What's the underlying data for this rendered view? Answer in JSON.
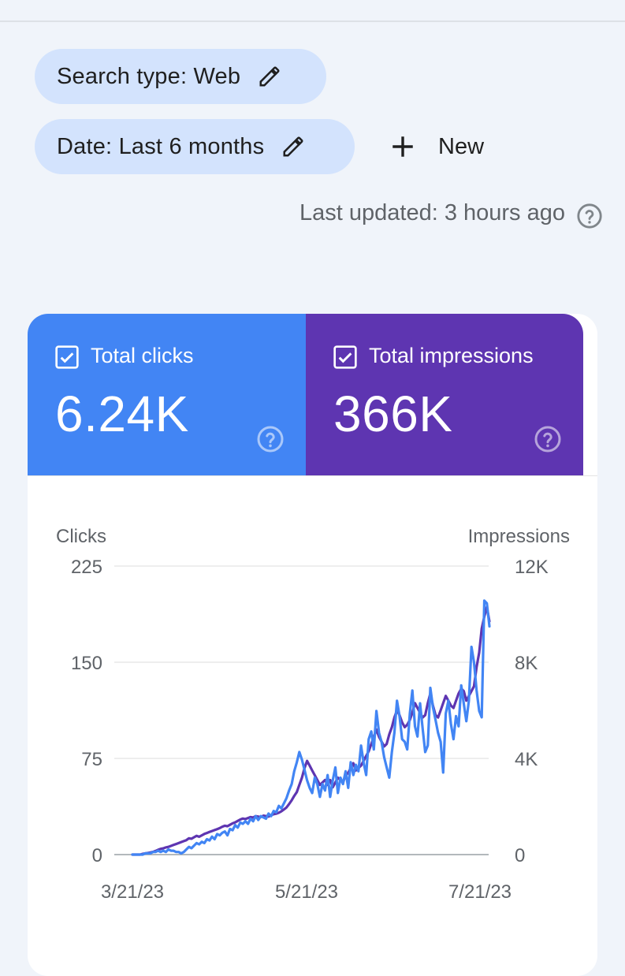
{
  "filters": {
    "search_type": "Search type: Web",
    "date": "Date: Last 6 months",
    "new_label": "New"
  },
  "status": {
    "last_updated": "Last updated: 3 hours ago"
  },
  "metrics": {
    "clicks": {
      "label": "Total clicks",
      "value": "6.24K",
      "color": "#4285f4",
      "checked": true
    },
    "impressions": {
      "label": "Total impressions",
      "value": "366K",
      "color": "#5e35b1",
      "checked": true
    }
  },
  "chart_data": {
    "type": "line",
    "y_left_label": "Clicks",
    "y_right_label": "Impressions",
    "y_left_ticks": [
      "225",
      "150",
      "75",
      "0"
    ],
    "y_right_ticks": [
      "12K",
      "8K",
      "4K",
      "0"
    ],
    "y_left_range": [
      0,
      225
    ],
    "y_right_range": [
      0,
      12000
    ],
    "x_tick_labels": [
      "3/21/23",
      "5/21/23",
      "7/21/23"
    ],
    "x_range": [
      "3/21/23",
      "7/30/23"
    ],
    "grid": true,
    "series": [
      {
        "name": "Clicks",
        "axis": "left",
        "color": "#4285f4",
        "values": [
          0,
          0,
          0,
          0,
          0,
          1,
          1,
          1,
          2,
          2,
          3,
          2,
          3,
          2,
          4,
          3,
          3,
          2,
          2,
          1,
          2,
          4,
          6,
          5,
          7,
          9,
          8,
          10,
          9,
          12,
          11,
          14,
          12,
          16,
          15,
          17,
          18,
          15,
          20,
          19,
          23,
          21,
          25,
          24,
          26,
          24,
          28,
          26,
          30,
          27,
          30,
          29,
          28,
          32,
          30,
          34,
          33,
          38,
          36,
          40,
          44,
          50,
          55,
          65,
          72,
          80,
          74,
          66,
          58,
          52,
          48,
          60,
          55,
          45,
          55,
          50,
          62,
          45,
          58,
          68,
          48,
          60,
          55,
          65,
          52,
          72,
          62,
          70,
          65,
          85,
          72,
          62,
          90,
          96,
          82,
          112,
          95,
          88,
          76,
          68,
          60,
          80,
          95,
          120,
          108,
          90,
          88,
          82,
          110,
          128,
          100,
          92,
          118,
          98,
          80,
          85,
          130,
          115,
          105,
          95,
          88,
          64,
          110,
          120,
          102,
          90,
          108,
          100,
          132,
          118,
          104,
          120,
          162,
          150,
          128,
          112,
          107,
          198,
          196,
          178
        ]
      },
      {
        "name": "Impressions",
        "axis": "right",
        "color": "#5e35b1",
        "values": [
          0,
          0,
          0,
          0,
          30,
          50,
          70,
          90,
          110,
          150,
          200,
          240,
          260,
          300,
          320,
          360,
          400,
          440,
          480,
          520,
          560,
          600,
          680,
          660,
          720,
          780,
          740,
          800,
          860,
          900,
          940,
          980,
          1020,
          1060,
          1100,
          1160,
          1200,
          1180,
          1240,
          1300,
          1340,
          1400,
          1460,
          1500,
          1480,
          1520,
          1560,
          1540,
          1600,
          1580,
          1560,
          1620,
          1600,
          1580,
          1640,
          1680,
          1700,
          1740,
          1800,
          1880,
          1960,
          2100,
          2260,
          2440,
          2600,
          2900,
          3200,
          3600,
          3900,
          3700,
          3500,
          3300,
          3100,
          2900,
          3000,
          3100,
          2900,
          3100,
          2800,
          3000,
          3200,
          3100,
          3000,
          3300,
          3400,
          3600,
          3800,
          3500,
          3600,
          3700,
          3900,
          4100,
          4300,
          4600,
          4900,
          5200,
          4900,
          4700,
          4500,
          4600,
          5000,
          5300,
          5700,
          6000,
          5800,
          5500,
          5300,
          5400,
          5600,
          5900,
          6300,
          6100,
          5900,
          5700,
          5800,
          6300,
          6700,
          6200,
          5800,
          5700,
          6000,
          6300,
          6600,
          6400,
          6200,
          6100,
          6400,
          6700,
          6900,
          6800,
          6400,
          6600,
          6800,
          7000,
          7800,
          8400,
          9400,
          9900,
          10300,
          9700
        ]
      }
    ]
  }
}
